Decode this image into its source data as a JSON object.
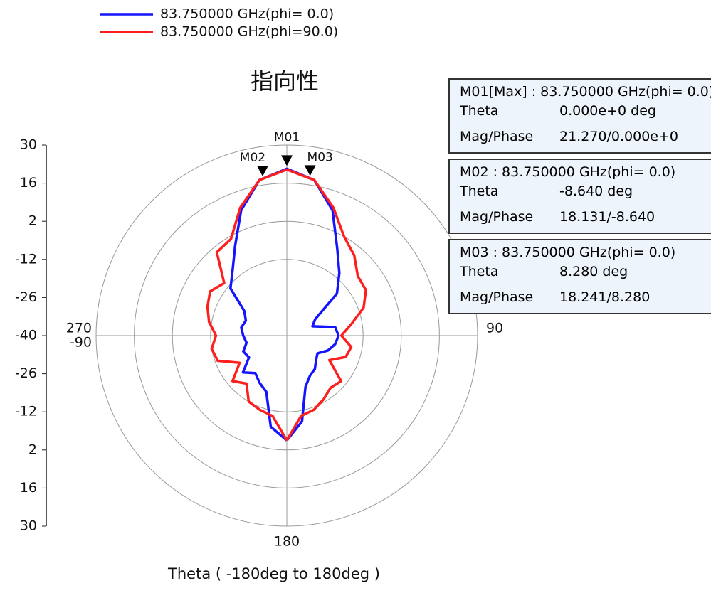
{
  "chart_data": {
    "type": "polar",
    "title": "指向性",
    "x_label": "Theta ( -180deg to 180deg )",
    "x": [
      -180,
      -170,
      -160,
      -150,
      -140,
      -130,
      -120,
      -110,
      -100,
      -90,
      -80,
      -70,
      -60,
      -50,
      -40,
      -30,
      -20,
      -10,
      0,
      10,
      20,
      30,
      40,
      50,
      60,
      70,
      80,
      90,
      100,
      110,
      120,
      130,
      140,
      150,
      160,
      170,
      180
    ],
    "series": [
      {
        "name": "83.750000 GHz(phi= 0.0)",
        "color": "#1414ff",
        "values": [
          -1.5,
          -6,
          -18,
          -20,
          -22,
          -19,
          -24,
          -23,
          -25,
          -24,
          -23,
          -24,
          -22,
          -13,
          -9,
          -2,
          9,
          18,
          21.27,
          18,
          9,
          -3,
          -10,
          -16,
          -28,
          -30,
          -22,
          -21,
          -22,
          -24,
          -27,
          -26,
          -24,
          -23,
          -20,
          -8,
          -1.5
        ]
      },
      {
        "name": "83.750000 GHz(phi=90.0)",
        "color": "#ff1e1e",
        "values": [
          -1.5,
          -10,
          -11,
          -12,
          -17,
          -14,
          -20,
          -13,
          -12,
          -14,
          -11,
          -9,
          -7.5,
          -10,
          0,
          1,
          10,
          18,
          21,
          18,
          10,
          2,
          -1.5,
          -6,
          -6.5,
          -10,
          -16,
          -20,
          -16,
          -17,
          -22,
          -14,
          -15,
          -13,
          -11,
          -10,
          -1.5
        ]
      }
    ],
    "ylim": [
      -40,
      30
    ],
    "yticks": [
      -40,
      -26,
      -12,
      2,
      16,
      30
    ],
    "grid_circles": [
      -12,
      2,
      16,
      30
    ],
    "xticks": [
      {
        "value": 90,
        "label": "90"
      },
      {
        "value": 180,
        "label": "180"
      },
      {
        "value": 270,
        "label": "270"
      },
      {
        "value": -90,
        "label": "-90"
      }
    ],
    "markers": [
      {
        "name": "M01",
        "theta": 0,
        "mag": 21.27,
        "header": "M01[Max] : 83.750000 GHz(phi= 0.0)",
        "rows": [
          [
            "Theta",
            "0.000e+0  deg"
          ],
          [
            "Mag/Phase",
            "21.270/0.000e+0"
          ]
        ]
      },
      {
        "name": "M02",
        "theta": -8.64,
        "mag": 18.131,
        "header": "M02 : 83.750000 GHz(phi= 0.0)",
        "rows": [
          [
            "Theta",
            "-8.640  deg"
          ],
          [
            "Mag/Phase",
            "18.131/-8.640"
          ]
        ]
      },
      {
        "name": "M03",
        "theta": 8.28,
        "mag": 18.241,
        "header": "M03 : 83.750000 GHz(phi= 0.0)",
        "rows": [
          [
            "Theta",
            "8.280  deg"
          ],
          [
            "Mag/Phase",
            "18.241/8.280"
          ]
        ]
      }
    ]
  }
}
